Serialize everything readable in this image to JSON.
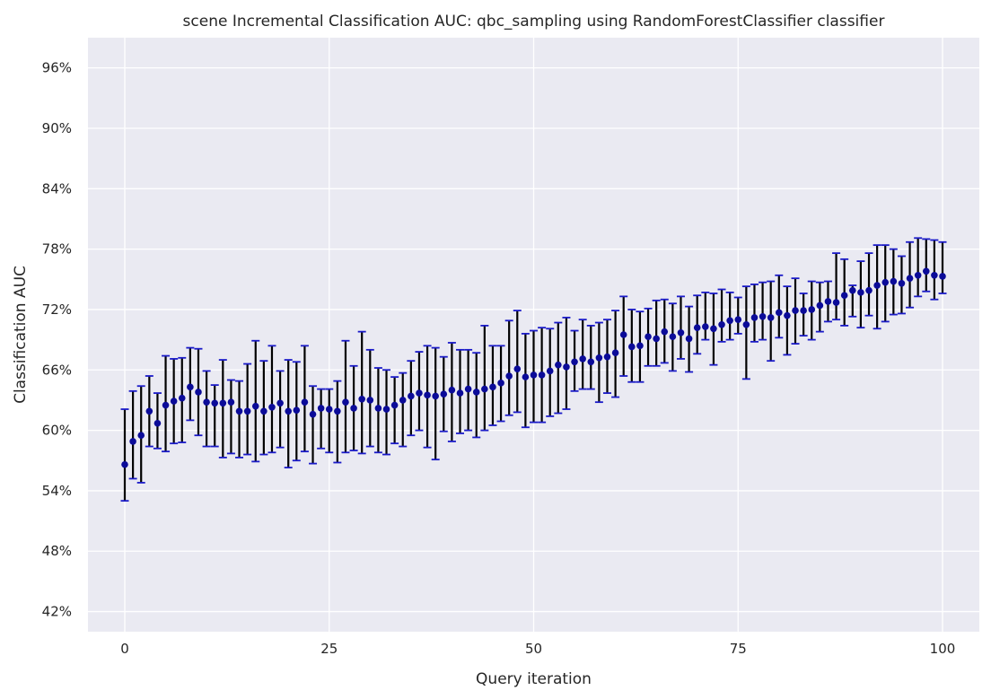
{
  "chart_data": {
    "type": "scatter",
    "title": "scene Incremental Classification AUC: qbc_sampling using RandomForestClassifier classifier",
    "xlabel": "Query iteration",
    "ylabel": "Classification AUC",
    "xlim": [
      -4.5,
      104.5
    ],
    "ylim": [
      0.4,
      0.99
    ],
    "xticks": [
      0,
      25,
      50,
      75,
      100
    ],
    "xtick_labels": [
      "0",
      "25",
      "50",
      "75",
      "100"
    ],
    "yticks": [
      0.42,
      0.48,
      0.54,
      0.6,
      0.66,
      0.72,
      0.78,
      0.84,
      0.9,
      0.96
    ],
    "ytick_labels": [
      "42%",
      "48%",
      "54%",
      "60%",
      "66%",
      "72%",
      "78%",
      "84%",
      "90%",
      "96%"
    ],
    "grid": true,
    "background": "#eaeaf2",
    "marker_color": "#0b0b99",
    "errorbar_color": "#000000",
    "cap_color": "#1a1ac8",
    "series": [
      {
        "x": [
          0,
          1,
          2,
          3,
          4,
          5,
          6,
          7,
          8,
          9,
          10,
          11,
          12,
          13,
          14,
          15,
          16,
          17,
          18,
          19,
          20,
          21,
          22,
          23,
          24,
          25,
          26,
          27,
          28,
          29,
          30,
          31,
          32,
          33,
          34,
          35,
          36,
          37,
          38,
          39,
          40,
          41,
          42,
          43,
          44,
          45,
          46,
          47,
          48,
          49,
          50,
          51,
          52,
          53,
          54,
          55,
          56,
          57,
          58,
          59,
          60,
          61,
          62,
          63,
          64,
          65,
          66,
          67,
          68,
          69,
          70,
          71,
          72,
          73,
          74,
          75,
          76,
          77,
          78,
          79,
          80,
          81,
          82,
          83,
          84,
          85,
          86,
          87,
          88,
          89,
          90,
          91,
          92,
          93,
          94,
          95,
          96,
          97,
          98,
          99,
          100
        ],
        "y": [
          0.566,
          0.589,
          0.595,
          0.619,
          0.607,
          0.625,
          0.629,
          0.632,
          0.643,
          0.638,
          0.628,
          0.627,
          0.627,
          0.628,
          0.619,
          0.619,
          0.624,
          0.619,
          0.623,
          0.627,
          0.619,
          0.62,
          0.628,
          0.616,
          0.622,
          0.621,
          0.619,
          0.628,
          0.622,
          0.631,
          0.63,
          0.622,
          0.621,
          0.625,
          0.63,
          0.634,
          0.637,
          0.635,
          0.634,
          0.636,
          0.64,
          0.637,
          0.641,
          0.638,
          0.641,
          0.643,
          0.647,
          0.654,
          0.661,
          0.653,
          0.655,
          0.655,
          0.659,
          0.665,
          0.663,
          0.668,
          0.671,
          0.668,
          0.672,
          0.673,
          0.677,
          0.695,
          0.683,
          0.684,
          0.693,
          0.691,
          0.698,
          0.693,
          0.697,
          0.691,
          0.702,
          0.703,
          0.701,
          0.705,
          0.709,
          0.71,
          0.705,
          0.712,
          0.713,
          0.712,
          0.717,
          0.714,
          0.719,
          0.719,
          0.72,
          0.724,
          0.728,
          0.727,
          0.734,
          0.739,
          0.737,
          0.739,
          0.744,
          0.747,
          0.748,
          0.746,
          0.751,
          0.754,
          0.758,
          0.754,
          0.753
        ],
        "lower": [
          0.53,
          0.552,
          0.548,
          0.584,
          0.582,
          0.579,
          0.587,
          0.588,
          0.61,
          0.595,
          0.584,
          0.584,
          0.573,
          0.577,
          0.573,
          0.576,
          0.569,
          0.576,
          0.578,
          0.583,
          0.563,
          0.57,
          0.579,
          0.567,
          0.582,
          0.578,
          0.568,
          0.578,
          0.58,
          0.577,
          0.584,
          0.578,
          0.576,
          0.587,
          0.584,
          0.595,
          0.6,
          0.583,
          0.571,
          0.599,
          0.589,
          0.597,
          0.6,
          0.593,
          0.6,
          0.605,
          0.609,
          0.615,
          0.618,
          0.603,
          0.608,
          0.608,
          0.614,
          0.617,
          0.621,
          0.639,
          0.641,
          0.641,
          0.628,
          0.637,
          0.633,
          0.654,
          0.648,
          0.648,
          0.664,
          0.664,
          0.667,
          0.659,
          0.671,
          0.658,
          0.676,
          0.69,
          0.665,
          0.688,
          0.69,
          0.696,
          0.651,
          0.688,
          0.69,
          0.669,
          0.692,
          0.675,
          0.686,
          0.694,
          0.69,
          0.698,
          0.708,
          0.71,
          0.704,
          0.713,
          0.702,
          0.714,
          0.701,
          0.708,
          0.715,
          0.716,
          0.722,
          0.733,
          0.738,
          0.73,
          0.736
        ],
        "upper": [
          0.621,
          0.639,
          0.644,
          0.654,
          0.637,
          0.674,
          0.671,
          0.672,
          0.682,
          0.681,
          0.659,
          0.645,
          0.67,
          0.65,
          0.649,
          0.666,
          0.689,
          0.669,
          0.684,
          0.659,
          0.67,
          0.668,
          0.684,
          0.644,
          0.641,
          0.641,
          0.649,
          0.689,
          0.664,
          0.698,
          0.68,
          0.662,
          0.66,
          0.653,
          0.657,
          0.669,
          0.678,
          0.684,
          0.682,
          0.673,
          0.687,
          0.68,
          0.68,
          0.677,
          0.704,
          0.684,
          0.684,
          0.709,
          0.719,
          0.696,
          0.699,
          0.702,
          0.701,
          0.707,
          0.712,
          0.699,
          0.71,
          0.704,
          0.707,
          0.71,
          0.719,
          0.733,
          0.72,
          0.718,
          0.721,
          0.729,
          0.73,
          0.726,
          0.733,
          0.723,
          0.734,
          0.737,
          0.736,
          0.74,
          0.737,
          0.732,
          0.743,
          0.745,
          0.747,
          0.748,
          0.754,
          0.743,
          0.751,
          0.736,
          0.748,
          0.747,
          0.748,
          0.776,
          0.77,
          0.744,
          0.768,
          0.776,
          0.784,
          0.784,
          0.78,
          0.773,
          0.787,
          0.791,
          0.79,
          0.789,
          0.787
        ]
      }
    ]
  }
}
